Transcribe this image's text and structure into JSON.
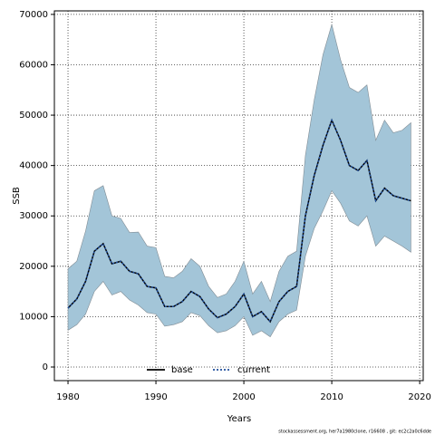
{
  "chart_data": {
    "type": "line",
    "xlabel": "Years",
    "ylabel": "SSB",
    "footer": "stockassessment.org, her7a1980clone, r16608 , git: ec2c2a0c6dde",
    "x": [
      1980,
      1981,
      1982,
      1983,
      1984,
      1985,
      1986,
      1987,
      1988,
      1989,
      1990,
      1991,
      1992,
      1993,
      1994,
      1995,
      1996,
      1997,
      1998,
      1999,
      2000,
      2001,
      2002,
      2003,
      2004,
      2005,
      2006,
      2007,
      2008,
      2009,
      2010,
      2011,
      2012,
      2013,
      2014,
      2015,
      2016,
      2017,
      2018,
      2019
    ],
    "band": {
      "color": "#a3c5d8",
      "edge": "#808c94",
      "upper": [
        19500,
        21000,
        27000,
        35000,
        36000,
        30000,
        29500,
        26700,
        26800,
        24000,
        23700,
        18000,
        17700,
        19000,
        21500,
        20000,
        16000,
        13800,
        14500,
        17000,
        21000,
        14500,
        17000,
        13000,
        19000,
        22000,
        23000,
        42000,
        53000,
        62000,
        68000,
        61000,
        55500,
        54500,
        56000,
        45000,
        49000,
        46500,
        47000,
        48500
      ],
      "lower": [
        7300,
        8400,
        10500,
        15000,
        17000,
        14300,
        15000,
        13300,
        12300,
        10800,
        10500,
        8100,
        8400,
        9000,
        10800,
        10200,
        8200,
        6800,
        7200,
        8200,
        10000,
        6300,
        7200,
        6000,
        9000,
        10500,
        11300,
        22000,
        27500,
        31000,
        35000,
        32500,
        29000,
        28000,
        30000,
        24000,
        26000,
        25000,
        24000,
        22800
      ]
    },
    "series": [
      {
        "name": "base",
        "color": "#000000",
        "dash": false,
        "values": [
          11700,
          13500,
          17000,
          23000,
          24500,
          20500,
          21000,
          19000,
          18500,
          16000,
          15700,
          12000,
          12000,
          13000,
          15000,
          14000,
          11500,
          9800,
          10500,
          12000,
          14500,
          10000,
          11000,
          9000,
          13000,
          15000,
          16000,
          30000,
          38000,
          44000,
          49000,
          45000,
          40000,
          39000,
          41000,
          33000,
          35500,
          34000,
          33500,
          33000
        ]
      },
      {
        "name": "current",
        "color": "#1f4e9c",
        "dash": true,
        "values": [
          11700,
          13500,
          17000,
          23000,
          24500,
          20500,
          21000,
          19000,
          18500,
          16000,
          15700,
          12000,
          12000,
          13000,
          15000,
          14000,
          11500,
          9800,
          10500,
          12000,
          14500,
          10000,
          11000,
          9000,
          13000,
          15000,
          16000,
          30000,
          38000,
          44000,
          49000,
          45000,
          40000,
          39000,
          41000,
          33000,
          35500,
          34000,
          33500,
          33000
        ]
      }
    ],
    "xlim": [
      1978.45,
      2020.4
    ],
    "ylim": [
      -2700,
      70700
    ],
    "xticks": [
      1980,
      1990,
      2000,
      2010,
      2020
    ],
    "yticks": [
      0,
      10000,
      20000,
      30000,
      40000,
      50000,
      60000,
      70000
    ],
    "grid": true
  }
}
